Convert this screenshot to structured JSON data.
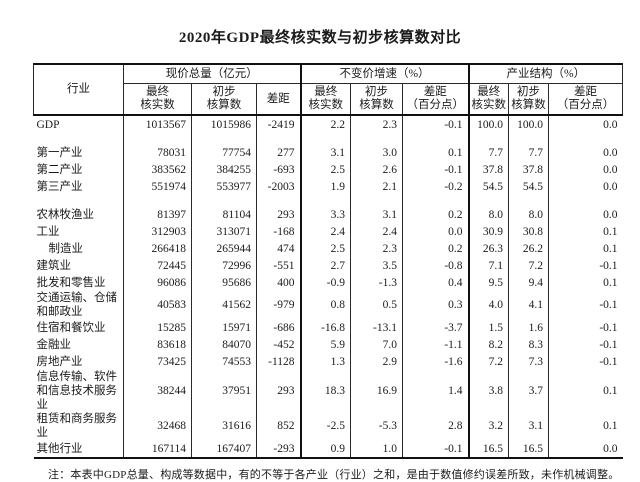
{
  "title": "2020年GDP最终核实数与初步核算数对比",
  "table": {
    "corner_header": "行业",
    "groups": [
      {
        "label": "现价总量（亿元）",
        "sub": [
          "最终\n核实数",
          "初步\n核算数",
          "差距"
        ]
      },
      {
        "label": "不变价增速（%）",
        "sub": [
          "最终\n核实数",
          "初步\n核算数",
          "差距\n（百分点）"
        ]
      },
      {
        "label": "产业结构（%）",
        "sub": [
          "最终\n核实数",
          "初步\n核算数",
          "差距\n（百分点）"
        ]
      }
    ],
    "rows": [
      {
        "label": "GDP",
        "values": [
          "1013567",
          "1015986",
          "-2419",
          "2.2",
          "2.3",
          "-0.1",
          "100.0",
          "100.0",
          "0.0"
        ]
      },
      {
        "spacer": true
      },
      {
        "label": "第一产业",
        "values": [
          "78031",
          "77754",
          "277",
          "3.1",
          "3.0",
          "0.1",
          "7.7",
          "7.7",
          "0.0"
        ]
      },
      {
        "label": "第二产业",
        "values": [
          "383562",
          "384255",
          "-693",
          "2.5",
          "2.6",
          "-0.1",
          "37.8",
          "37.8",
          "0.0"
        ]
      },
      {
        "label": "第三产业",
        "values": [
          "551974",
          "553977",
          "-2003",
          "1.9",
          "2.1",
          "-0.2",
          "54.5",
          "54.5",
          "0.0"
        ]
      },
      {
        "spacer": true
      },
      {
        "label": "农林牧渔业",
        "values": [
          "81397",
          "81104",
          "293",
          "3.3",
          "3.1",
          "0.2",
          "8.0",
          "8.0",
          "0.0"
        ]
      },
      {
        "label": "工业",
        "values": [
          "312903",
          "313071",
          "-168",
          "2.4",
          "2.4",
          "0.0",
          "30.9",
          "30.8",
          "0.1"
        ]
      },
      {
        "label": "制造业",
        "indent": true,
        "values": [
          "266418",
          "265944",
          "474",
          "2.5",
          "2.3",
          "0.2",
          "26.3",
          "26.2",
          "0.1"
        ]
      },
      {
        "label": "建筑业",
        "values": [
          "72445",
          "72996",
          "-551",
          "2.7",
          "3.5",
          "-0.8",
          "7.1",
          "7.2",
          "-0.1"
        ]
      },
      {
        "label": "批发和零售业",
        "values": [
          "96086",
          "95686",
          "400",
          "-0.9",
          "-1.3",
          "0.4",
          "9.5",
          "9.4",
          "0.1"
        ]
      },
      {
        "label": "交通运输、仓储\n和邮政业",
        "values": [
          "40583",
          "41562",
          "-979",
          "0.8",
          "0.5",
          "0.3",
          "4.0",
          "4.1",
          "-0.1"
        ]
      },
      {
        "label": "住宿和餐饮业",
        "values": [
          "15285",
          "15971",
          "-686",
          "-16.8",
          "-13.1",
          "-3.7",
          "1.5",
          "1.6",
          "-0.1"
        ]
      },
      {
        "label": "金融业",
        "values": [
          "83618",
          "84070",
          "-452",
          "5.9",
          "7.0",
          "-1.1",
          "8.2",
          "8.3",
          "-0.1"
        ]
      },
      {
        "label": "房地产业",
        "values": [
          "73425",
          "74553",
          "-1128",
          "1.3",
          "2.9",
          "-1.6",
          "7.2",
          "7.3",
          "-0.1"
        ]
      },
      {
        "label": "信息传输、软件\n和信息技术服务业",
        "values": [
          "38244",
          "37951",
          "293",
          "18.3",
          "16.9",
          "1.4",
          "3.8",
          "3.7",
          "0.1"
        ]
      },
      {
        "label": "租赁和商务服务业",
        "values": [
          "32468",
          "31616",
          "852",
          "-2.5",
          "-5.3",
          "2.8",
          "3.2",
          "3.1",
          "0.1"
        ]
      },
      {
        "label": "其他行业",
        "values": [
          "167114",
          "167407",
          "-293",
          "0.9",
          "1.0",
          "-0.1",
          "16.5",
          "16.5",
          "0.0"
        ]
      }
    ]
  },
  "note": "注：本表中GDP总量、构成等数据中，有的不等于各产业（行业）之和，是由于数值修约误差所致，未作机械调整。"
}
